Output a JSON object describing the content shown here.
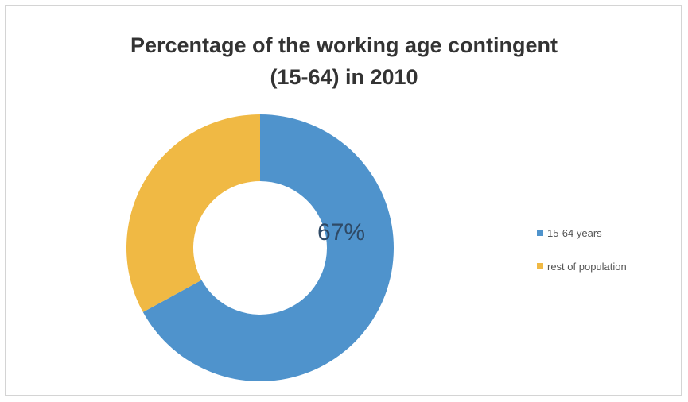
{
  "chart_data": {
    "type": "pie",
    "variant": "donut",
    "title_lines": [
      "Percentage of the working age contingent",
      "(15-64) in 2010"
    ],
    "slices": [
      {
        "name": "15-64 years",
        "value": 67,
        "color": "#4f93cc",
        "label": "67%"
      },
      {
        "name": "rest of population",
        "value": 33,
        "color": "#f0b944",
        "label": ""
      }
    ],
    "legend_position": "right"
  }
}
